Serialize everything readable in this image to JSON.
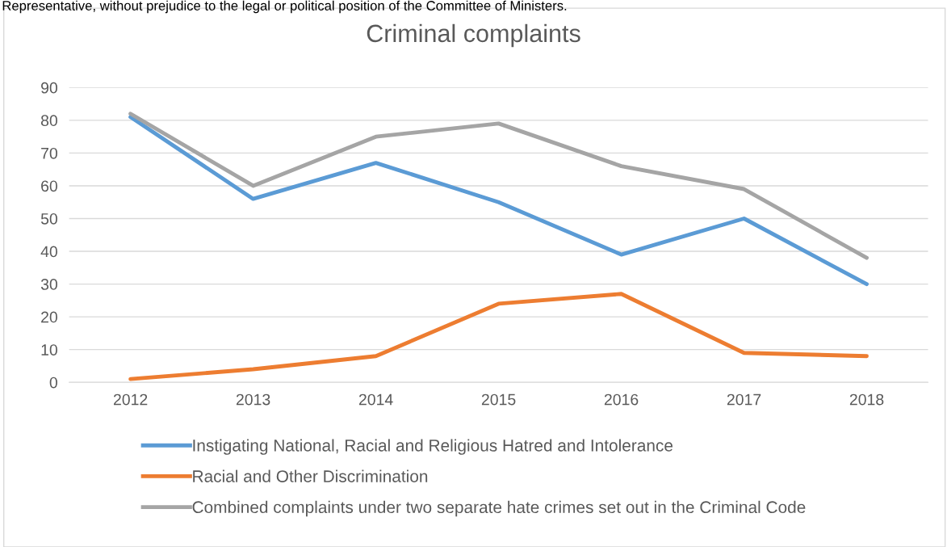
{
  "chart_data": {
    "type": "line",
    "title": "Criminal complaints",
    "annotations": [
      "Representative, without prejudice to the legal or political position of the Committee of Ministers."
    ],
    "categories": [
      "2012",
      "2013",
      "2014",
      "2015",
      "2016",
      "2017",
      "2018"
    ],
    "series": [
      {
        "name": "Instigating National, Racial and Religious Hatred and Intolerance",
        "color": "#5b9bd5",
        "values": [
          81,
          56,
          67,
          55,
          39,
          50,
          30
        ]
      },
      {
        "name": "Racial and Other Discrimination",
        "color": "#ed7d31",
        "values": [
          1,
          4,
          8,
          24,
          27,
          9,
          8
        ]
      },
      {
        "name": "Combined complaints under two separate hate crimes set out in the Criminal Code",
        "color": "#a5a5a5",
        "values": [
          82,
          60,
          75,
          79,
          66,
          59,
          38
        ]
      }
    ],
    "ylim": [
      0,
      90
    ],
    "yticks": [
      0,
      10,
      20,
      30,
      40,
      50,
      60,
      70,
      80,
      90
    ],
    "grid": "y",
    "legend": "bottom",
    "marker": "none",
    "line_style": "solid"
  }
}
